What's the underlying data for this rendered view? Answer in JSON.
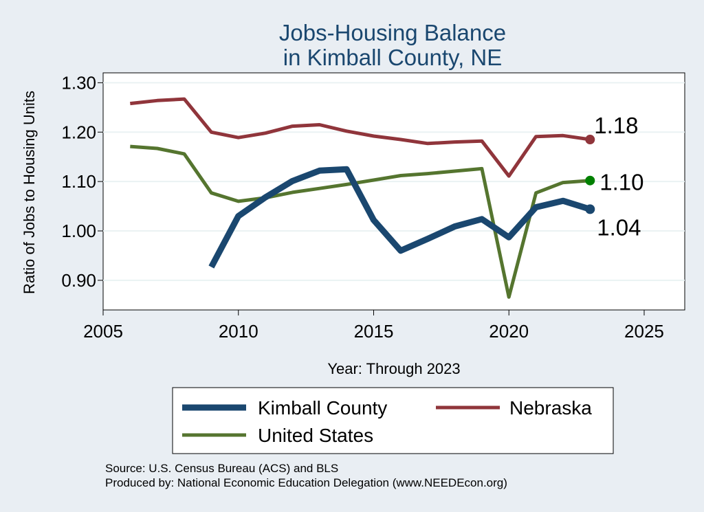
{
  "chart_data": {
    "type": "line",
    "title": [
      "Jobs-Housing Balance",
      "in Kimball County, NE"
    ],
    "xlabel": "Year: Through 2023",
    "ylabel": "Ratio of Jobs to Housing Units",
    "xlim": [
      2005,
      2026.5
    ],
    "ylim": [
      0.84,
      1.32
    ],
    "xticks": [
      2005,
      2010,
      2015,
      2020,
      2025
    ],
    "yticks": [
      0.9,
      1.0,
      1.1,
      1.2,
      1.3
    ],
    "ytick_labels": [
      "0.90",
      "1.00",
      "1.10",
      "1.20",
      "1.30"
    ],
    "grid": true,
    "legend_position": "bottom",
    "series": [
      {
        "name": "Kimball County",
        "color": "#1a476f",
        "x": [
          2009,
          2010,
          2011,
          2012,
          2013,
          2014,
          2015,
          2016,
          2017,
          2018,
          2019,
          2020,
          2021,
          2022,
          2023
        ],
        "values": [
          0.927,
          1.03,
          1.068,
          1.101,
          1.122,
          1.125,
          1.022,
          0.96,
          0.984,
          1.009,
          1.024,
          0.987,
          1.048,
          1.061,
          1.044
        ],
        "end_label": "1.04"
      },
      {
        "name": "Nebraska",
        "color": "#90353b",
        "x": [
          2006,
          2007,
          2008,
          2009,
          2010,
          2011,
          2012,
          2013,
          2014,
          2015,
          2016,
          2017,
          2018,
          2019,
          2020,
          2021,
          2022,
          2023
        ],
        "values": [
          1.258,
          1.264,
          1.267,
          1.2,
          1.189,
          1.198,
          1.212,
          1.215,
          1.202,
          1.192,
          1.185,
          1.177,
          1.18,
          1.182,
          1.111,
          1.191,
          1.193,
          1.185
        ],
        "end_label": "1.18"
      },
      {
        "name": "United States",
        "color": "#55752f",
        "x": [
          2006,
          2007,
          2008,
          2009,
          2010,
          2011,
          2012,
          2013,
          2014,
          2015,
          2016,
          2017,
          2018,
          2019,
          2020,
          2021,
          2022,
          2023
        ],
        "values": [
          1.171,
          1.167,
          1.156,
          1.077,
          1.06,
          1.067,
          1.078,
          1.086,
          1.094,
          1.103,
          1.112,
          1.116,
          1.121,
          1.126,
          0.866,
          1.077,
          1.098,
          1.102
        ],
        "end_label": "1.10"
      }
    ]
  },
  "notes": {
    "source": "Source: U.S. Census Bureau (ACS) and BLS",
    "producer": "Produced by: National Economic Education Delegation (www.NEEDEcon.org)"
  }
}
